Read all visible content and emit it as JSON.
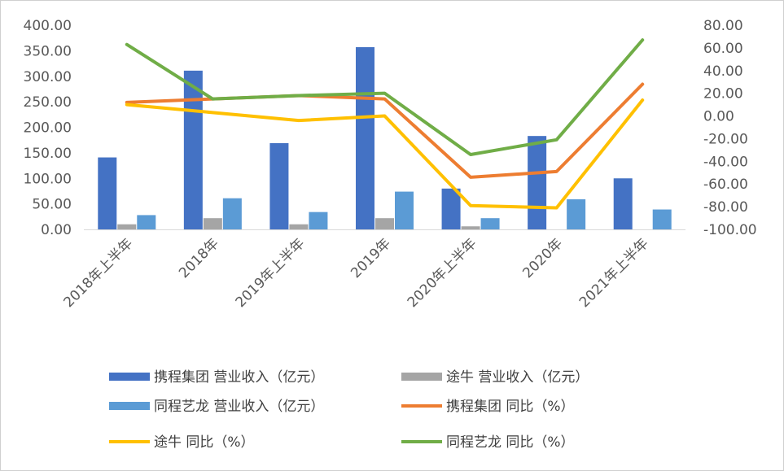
{
  "chart_data": {
    "type": "bar",
    "categories": [
      "2018年上半年",
      "2018年",
      "2019年上半年",
      "2019年",
      "2020年上半年",
      "2020年",
      "2021年上半年"
    ],
    "y_left": {
      "ticks": [
        "400.00",
        "350.00",
        "300.00",
        "250.00",
        "200.00",
        "150.00",
        "100.00",
        "50.00",
        "0.00"
      ],
      "range": [
        0,
        400
      ]
    },
    "y_right": {
      "ticks": [
        "80.00",
        "60.00",
        "40.00",
        "20.00",
        "0.00",
        "-20.00",
        "-40.00",
        "-60.00",
        "-80.00",
        "-100.00"
      ],
      "range": [
        -100,
        80
      ]
    },
    "bar_series": [
      {
        "name": "携程集团 营业收入（亿元）",
        "color": "#4472C4",
        "values": [
          141,
          311,
          169,
          357,
          80,
          183,
          100
        ]
      },
      {
        "name": "途牛 营业收入（亿元）",
        "color": "#A5A5A5",
        "values": [
          10,
          22,
          10,
          22,
          6,
          null,
          null
        ]
      },
      {
        "name": "同程艺龙 营业收入（亿元）",
        "color": "#5B9BD5",
        "values": [
          28,
          61,
          34,
          74,
          22,
          59,
          39
        ]
      }
    ],
    "line_series": [
      {
        "name": "携程集团 同比（%）",
        "color": "#ED7D31",
        "values": [
          12,
          15,
          18,
          15,
          -54,
          -49,
          28
        ]
      },
      {
        "name": "途牛 同比（%）",
        "color": "#FFC000",
        "values": [
          10,
          3,
          -4,
          0,
          -79,
          -81,
          14
        ]
      },
      {
        "name": "同程艺龙 同比（%）",
        "color": "#70AD47",
        "values": [
          63,
          15,
          18,
          20,
          -34,
          -21,
          67
        ]
      }
    ],
    "legend": {
      "position": "bottom"
    },
    "grid": false
  }
}
